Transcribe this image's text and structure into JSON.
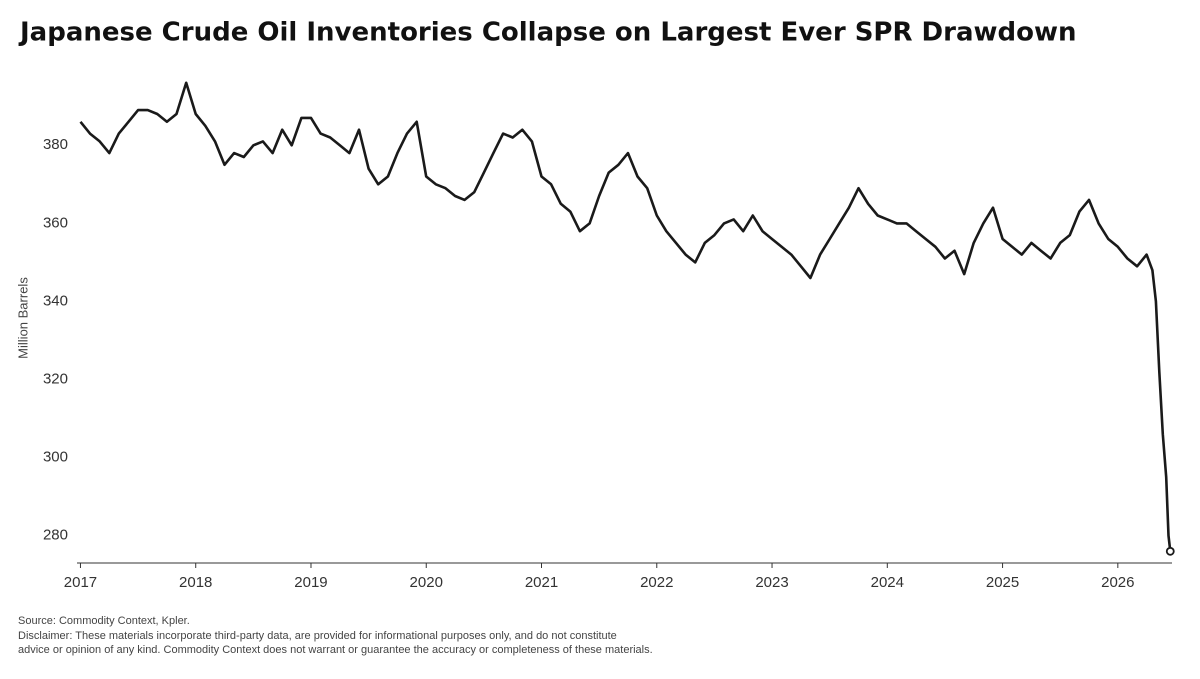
{
  "chart_data": {
    "type": "line",
    "title": "Japanese Crude Oil Inventories Collapse on Largest Ever SPR Drawdown",
    "y_label": "Million Barrels",
    "source": "Source: Commodity Context, Kpler.",
    "disclaimer": [
      "Disclaimer: These materials incorporate third-party data, are provided for informational purposes only, and do not constitute",
      "advice or opinion of any kind. Commodity Context does not warrant or guarantee the accuracy or completeness of these materials."
    ],
    "color": "#1a1a1a",
    "end_marker": true,
    "x": [
      2017,
      2017.083,
      2017.167,
      2017.25,
      2017.333,
      2017.417,
      2017.5,
      2017.583,
      2017.667,
      2017.75,
      2017.833,
      2017.917,
      2018,
      2018.083,
      2018.167,
      2018.25,
      2018.333,
      2018.417,
      2018.5,
      2018.583,
      2018.667,
      2018.75,
      2018.833,
      2018.917,
      2019,
      2019.083,
      2019.167,
      2019.25,
      2019.333,
      2019.417,
      2019.5,
      2019.583,
      2019.667,
      2019.75,
      2019.833,
      2019.917,
      2020,
      2020.083,
      2020.167,
      2020.25,
      2020.333,
      2020.417,
      2020.5,
      2020.583,
      2020.667,
      2020.75,
      2020.833,
      2020.917,
      2021,
      2021.083,
      2021.167,
      2021.25,
      2021.333,
      2021.417,
      2021.5,
      2021.583,
      2021.667,
      2021.75,
      2021.833,
      2021.917,
      2022,
      2022.083,
      2022.167,
      2022.25,
      2022.333,
      2022.417,
      2022.5,
      2022.583,
      2022.667,
      2022.75,
      2022.833,
      2022.917,
      2023,
      2023.083,
      2023.167,
      2023.25,
      2023.333,
      2023.417,
      2023.5,
      2023.583,
      2023.667,
      2023.75,
      2023.833,
      2023.917,
      2024,
      2024.083,
      2024.167,
      2024.25,
      2024.333,
      2024.417,
      2024.5,
      2024.583,
      2024.667,
      2024.75,
      2024.833,
      2024.917,
      2025,
      2025.083,
      2025.167,
      2025.25,
      2025.333,
      2025.417,
      2025.5,
      2025.583,
      2025.667,
      2025.75,
      2025.833,
      2025.917,
      2026,
      2026.083,
      2026.167,
      2026.25,
      2026.3,
      2026.33,
      2026.36,
      2026.39,
      2026.42,
      2026.44,
      2026.455
    ],
    "values": [
      386,
      383,
      381,
      378,
      383,
      386,
      389,
      389,
      388,
      386,
      388,
      396,
      388,
      385,
      381,
      375,
      378,
      377,
      380,
      381,
      378,
      384,
      380,
      387,
      387,
      383,
      382,
      380,
      378,
      384,
      374,
      370,
      372,
      378,
      383,
      386,
      372,
      370,
      369,
      367,
      366,
      368,
      373,
      378,
      383,
      382,
      384,
      381,
      372,
      370,
      365,
      363,
      358,
      360,
      367,
      373,
      375,
      378,
      372,
      369,
      362,
      358,
      355,
      352,
      350,
      355,
      357,
      360,
      361,
      358,
      362,
      358,
      356,
      354,
      352,
      349,
      346,
      352,
      356,
      360,
      364,
      369,
      365,
      362,
      361,
      360,
      360,
      358,
      356,
      354,
      351,
      353,
      347,
      355,
      360,
      364,
      356,
      354,
      352,
      355,
      353,
      351,
      355,
      357,
      363,
      366,
      360,
      356,
      354,
      351,
      349,
      352,
      348,
      340,
      322,
      306,
      295,
      280,
      276
    ],
    "xlim": [
      2016.97,
      2026.47
    ],
    "xticks": [
      2017,
      2018,
      2019,
      2020,
      2021,
      2022,
      2023,
      2024,
      2025,
      2026
    ],
    "ylim": [
      273,
      398
    ],
    "yticks": [
      280,
      300,
      320,
      340,
      360,
      380
    ]
  }
}
